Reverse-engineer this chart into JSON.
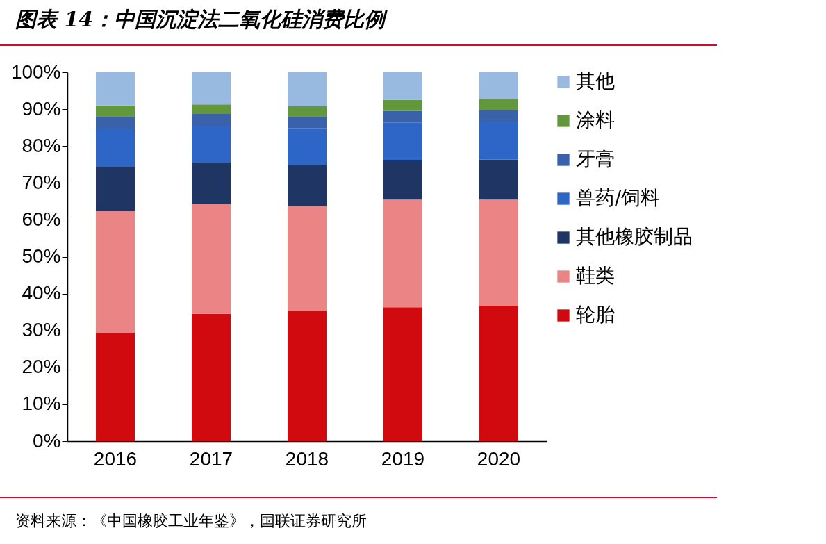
{
  "chart_data": {
    "type": "bar",
    "title": "图表 14：中国沉淀法二氧化硅消费比例",
    "stacked": true,
    "categories": [
      "2016",
      "2017",
      "2018",
      "2019",
      "2020"
    ],
    "series": [
      {
        "name": "轮胎",
        "color": "#d10a10",
        "values": [
          29.4,
          34.5,
          35.2,
          36.3,
          36.7
        ]
      },
      {
        "name": "鞋类",
        "color": "#eb8484",
        "values": [
          33.1,
          29.9,
          28.6,
          29.2,
          28.8
        ]
      },
      {
        "name": "其他橡胶制品",
        "color": "#1f3664",
        "values": [
          11.9,
          11.1,
          11.0,
          10.6,
          10.8
        ]
      },
      {
        "name": "兽药/饲料",
        "color": "#2e66c8",
        "values": [
          10.3,
          10.0,
          10.1,
          10.3,
          10.3
        ]
      },
      {
        "name": "牙膏",
        "color": "#3a62aa",
        "values": [
          3.4,
          3.2,
          3.2,
          3.1,
          3.2
        ]
      },
      {
        "name": "涂料",
        "color": "#63973b",
        "values": [
          2.9,
          2.6,
          2.7,
          3.0,
          3.0
        ]
      },
      {
        "name": "其他",
        "color": "#98b9e0",
        "values": [
          9.0,
          8.7,
          9.2,
          7.5,
          7.2
        ]
      }
    ],
    "ylim": [
      0,
      100
    ],
    "yticks": [
      {
        "value": 0,
        "label": "0%"
      },
      {
        "value": 10,
        "label": "10%"
      },
      {
        "value": 20,
        "label": "20%"
      },
      {
        "value": 30,
        "label": "30%"
      },
      {
        "value": 40,
        "label": "40%"
      },
      {
        "value": 50,
        "label": "50%"
      },
      {
        "value": 60,
        "label": "60%"
      },
      {
        "value": 70,
        "label": "70%"
      },
      {
        "value": 80,
        "label": "80%"
      },
      {
        "value": 90,
        "label": "90%"
      },
      {
        "value": 100,
        "label": "100%"
      }
    ],
    "grid": false,
    "legend": "right",
    "annotations": [
      "资料来源：《中国橡胶工业年鉴》，国联证券研究所"
    ]
  }
}
